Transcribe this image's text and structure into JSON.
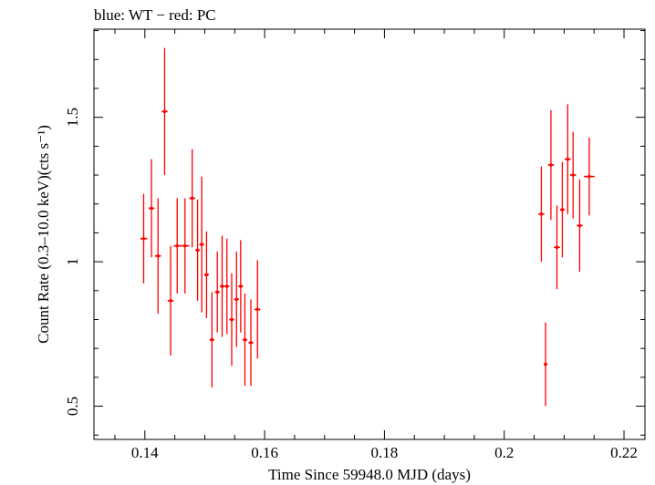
{
  "chart_data": {
    "type": "scatter",
    "title": "blue: WT − red: PC",
    "xlabel": "Time Since 59948.0 MJD (days)",
    "ylabel": "Count Rate (0.3–10.0 keV)(cts s⁻¹)",
    "xlim": [
      0.1315,
      0.2235
    ],
    "ylim": [
      0.385,
      1.805
    ],
    "xticks": [
      0.14,
      0.16,
      0.18,
      0.2,
      0.22
    ],
    "xtick_labels": [
      "0.14",
      "0.16",
      "0.18",
      "0.2",
      "0.22"
    ],
    "yticks": [
      0.5,
      1,
      1.5
    ],
    "ytick_labels": [
      "0.5",
      "1",
      "1.5"
    ],
    "grid": false,
    "colors": {
      "PC": "#ff0000",
      "WT": "#0000ff",
      "frame": "#000000"
    },
    "series": [
      {
        "name": "PC",
        "color": "#ff0000",
        "points": [
          {
            "x": 0.1398,
            "xerr": 0.0006,
            "y": 1.08,
            "yerr": 0.155
          },
          {
            "x": 0.1411,
            "xerr": 0.0005,
            "y": 1.185,
            "yerr": 0.17
          },
          {
            "x": 0.1422,
            "xerr": 0.0005,
            "y": 1.02,
            "yerr": 0.2
          },
          {
            "x": 0.1433,
            "xerr": 0.0005,
            "y": 1.52,
            "yerr": 0.22
          },
          {
            "x": 0.1443,
            "xerr": 0.0005,
            "y": 0.865,
            "yerr": 0.19
          },
          {
            "x": 0.1454,
            "xerr": 0.0006,
            "y": 1.055,
            "yerr": 0.165
          },
          {
            "x": 0.1467,
            "xerr": 0.0007,
            "y": 1.055,
            "yerr": 0.165
          },
          {
            "x": 0.1479,
            "xerr": 0.0005,
            "y": 1.22,
            "yerr": 0.17
          },
          {
            "x": 0.1488,
            "xerr": 0.0004,
            "y": 1.04,
            "yerr": 0.175
          },
          {
            "x": 0.1495,
            "xerr": 0.0004,
            "y": 1.06,
            "yerr": 0.235
          },
          {
            "x": 0.1503,
            "xerr": 0.0004,
            "y": 0.955,
            "yerr": 0.15
          },
          {
            "x": 0.1512,
            "xerr": 0.0004,
            "y": 0.73,
            "yerr": 0.165
          },
          {
            "x": 0.1521,
            "xerr": 0.0004,
            "y": 0.895,
            "yerr": 0.14
          },
          {
            "x": 0.1529,
            "xerr": 0.0004,
            "y": 0.915,
            "yerr": 0.175
          },
          {
            "x": 0.1537,
            "xerr": 0.0004,
            "y": 0.915,
            "yerr": 0.165
          },
          {
            "x": 0.1545,
            "xerr": 0.0004,
            "y": 0.8,
            "yerr": 0.16
          },
          {
            "x": 0.1553,
            "xerr": 0.0004,
            "y": 0.87,
            "yerr": 0.165
          },
          {
            "x": 0.156,
            "xerr": 0.0004,
            "y": 0.915,
            "yerr": 0.16
          },
          {
            "x": 0.1567,
            "xerr": 0.0004,
            "y": 0.73,
            "yerr": 0.16
          },
          {
            "x": 0.1577,
            "xerr": 0.0004,
            "y": 0.72,
            "yerr": 0.15
          },
          {
            "x": 0.1588,
            "xerr": 0.0005,
            "y": 0.835,
            "yerr": 0.17
          },
          {
            "x": 0.2062,
            "xerr": 0.0005,
            "y": 1.165,
            "yerr": 0.165
          },
          {
            "x": 0.2069,
            "xerr": 0.0003,
            "y": 0.645,
            "yerr": 0.145
          },
          {
            "x": 0.2078,
            "xerr": 0.0005,
            "y": 1.335,
            "yerr": 0.19
          },
          {
            "x": 0.2088,
            "xerr": 0.0005,
            "y": 1.05,
            "yerr": 0.145
          },
          {
            "x": 0.2097,
            "xerr": 0.0004,
            "y": 1.18,
            "yerr": 0.165
          },
          {
            "x": 0.2106,
            "xerr": 0.0005,
            "y": 1.355,
            "yerr": 0.19
          },
          {
            "x": 0.2115,
            "xerr": 0.0005,
            "y": 1.3,
            "yerr": 0.15
          },
          {
            "x": 0.2126,
            "xerr": 0.0005,
            "y": 1.125,
            "yerr": 0.16
          },
          {
            "x": 0.2142,
            "xerr": 0.0009,
            "y": 1.295,
            "yerr": 0.135
          }
        ]
      }
    ]
  }
}
